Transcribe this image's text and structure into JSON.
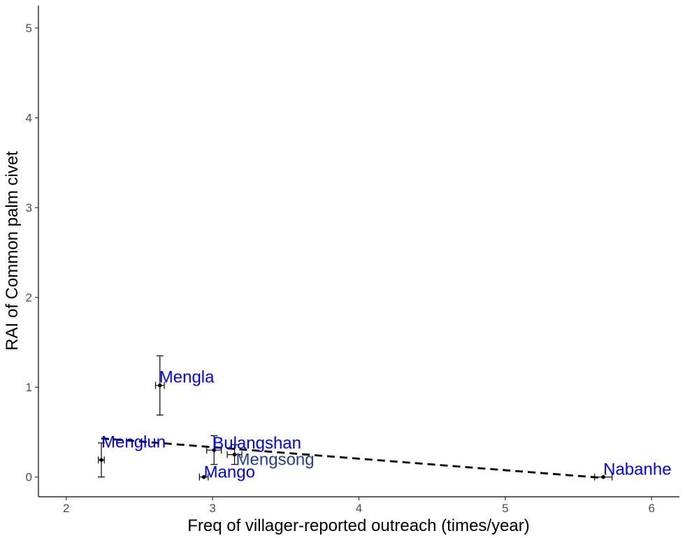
{
  "chart_data": {
    "type": "scatter",
    "title": "",
    "xlabel": "Freq of villager-reported outreach (times/year)",
    "ylabel": "RAI of Common palm civet",
    "xlim": [
      1.81,
      6.19
    ],
    "ylim": [
      -0.22,
      5.25
    ],
    "xticks": [
      2,
      3,
      4,
      5,
      6
    ],
    "yticks": [
      0,
      1,
      2,
      3,
      4,
      5
    ],
    "grid": false,
    "legend": "none",
    "colors": {
      "point": "#000000",
      "label": "#0000ff",
      "label_alt": "#1f3f8f",
      "trend": "#000000"
    },
    "points": [
      {
        "label": "Mengla",
        "x": 2.64,
        "y": 1.02,
        "x_err": 0.03,
        "y_err": 0.33
      },
      {
        "label": "Menglun",
        "x": 2.24,
        "y": 0.19,
        "x_err": 0.02,
        "y_err": 0.19
      },
      {
        "label": "Bulangshan",
        "x": 3.01,
        "y": 0.3,
        "x_err": 0.05,
        "y_err": 0.16
      },
      {
        "label": "Mengsong",
        "x": 3.15,
        "y": 0.25,
        "x_err": 0.05,
        "y_err": 0.11
      },
      {
        "label": "Mango",
        "x": 2.94,
        "y": 0.0,
        "x_err": 0.03,
        "y_err": 0.0
      },
      {
        "label": "Nabanhe",
        "x": 5.67,
        "y": 0.0,
        "x_err": 0.06,
        "y_err": 0.0
      }
    ],
    "trend_line": {
      "style": "dashed",
      "x": [
        2.24,
        5.67
      ],
      "y": [
        0.43,
        -0.01
      ]
    }
  }
}
